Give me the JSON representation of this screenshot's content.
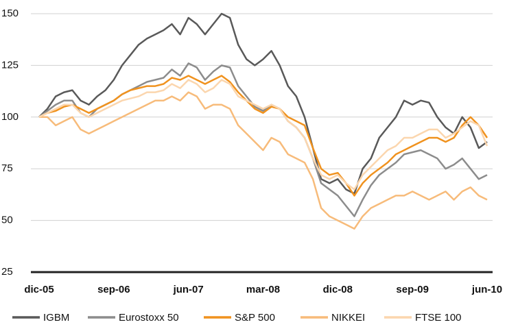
{
  "chart_data": {
    "type": "line",
    "categories": [
      "dic-05",
      null,
      null,
      null,
      null,
      null,
      null,
      null,
      null,
      "sep-06",
      null,
      null,
      null,
      null,
      null,
      null,
      null,
      null,
      "jun-07",
      null,
      null,
      null,
      null,
      null,
      null,
      null,
      null,
      "mar-08",
      null,
      null,
      null,
      null,
      null,
      null,
      null,
      null,
      "dic-08",
      null,
      null,
      null,
      null,
      null,
      null,
      null,
      null,
      "sep-09",
      null,
      null,
      null,
      null,
      null,
      null,
      null,
      null,
      "jun-10"
    ],
    "ylim": [
      25,
      150
    ],
    "yticks": [
      25,
      50,
      75,
      100,
      125,
      150
    ],
    "grid": true,
    "series": [
      {
        "name": "IGBM",
        "color": "#595959",
        "values": [
          100,
          104,
          110,
          112,
          113,
          108,
          106,
          110,
          113,
          118,
          125,
          130,
          135,
          138,
          140,
          142,
          145,
          140,
          148,
          145,
          140,
          145,
          150,
          148,
          135,
          128,
          125,
          128,
          132,
          125,
          115,
          110,
          100,
          85,
          70,
          68,
          70,
          65,
          63,
          75,
          80,
          90,
          95,
          100,
          108,
          106,
          108,
          107,
          100,
          95,
          92,
          100,
          95,
          85,
          88
        ]
      },
      {
        "name": "Eurostoxx 50",
        "color": "#8c8c8c",
        "values": [
          100,
          103,
          106,
          108,
          108,
          102,
          100,
          104,
          106,
          108,
          111,
          113,
          115,
          117,
          118,
          119,
          123,
          120,
          126,
          124,
          118,
          122,
          125,
          124,
          115,
          110,
          105,
          103,
          106,
          104,
          98,
          95,
          90,
          80,
          68,
          65,
          62,
          57,
          52,
          60,
          67,
          72,
          75,
          78,
          82,
          83,
          84,
          82,
          80,
          75,
          77,
          80,
          75,
          70,
          72
        ]
      },
      {
        "name": "S&P 500",
        "color": "#f0921e",
        "values": [
          100,
          102,
          103,
          105,
          106,
          104,
          102,
          104,
          106,
          108,
          111,
          113,
          114,
          115,
          115,
          116,
          119,
          118,
          120,
          118,
          116,
          118,
          120,
          117,
          112,
          108,
          104,
          102,
          105,
          104,
          100,
          98,
          96,
          85,
          75,
          72,
          73,
          68,
          62,
          68,
          72,
          75,
          78,
          82,
          84,
          86,
          88,
          90,
          90,
          88,
          90,
          96,
          100,
          96,
          90
        ]
      },
      {
        "name": "NIKKEI",
        "color": "#f7bb7a",
        "values": [
          100,
          100,
          96,
          98,
          100,
          94,
          92,
          94,
          96,
          98,
          100,
          102,
          104,
          106,
          108,
          108,
          110,
          108,
          112,
          110,
          104,
          106,
          106,
          104,
          96,
          92,
          88,
          84,
          90,
          88,
          82,
          80,
          78,
          70,
          56,
          52,
          50,
          48,
          46,
          52,
          56,
          58,
          60,
          62,
          62,
          64,
          62,
          60,
          62,
          64,
          60,
          64,
          66,
          62,
          60
        ]
      },
      {
        "name": "FTSE 100",
        "color": "#fbd6ae",
        "values": [
          100,
          102,
          104,
          106,
          106,
          102,
          100,
          102,
          104,
          106,
          108,
          109,
          110,
          112,
          112,
          113,
          116,
          114,
          118,
          116,
          112,
          114,
          118,
          116,
          110,
          108,
          106,
          104,
          106,
          104,
          98,
          95,
          90,
          80,
          72,
          70,
          72,
          68,
          65,
          72,
          76,
          80,
          84,
          86,
          90,
          90,
          92,
          94,
          94,
          90,
          92,
          95,
          98,
          96,
          86
        ]
      }
    ]
  }
}
